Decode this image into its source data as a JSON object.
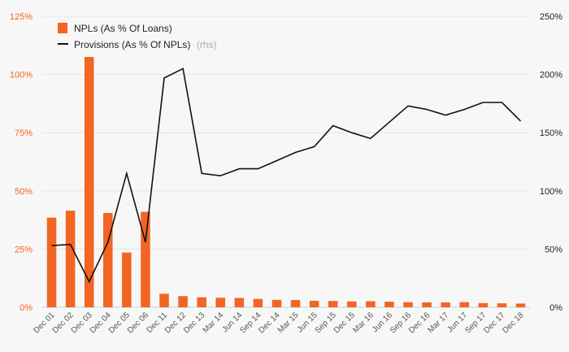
{
  "chart_data": {
    "type": "bar",
    "categories": [
      "Dec 01",
      "Dec 02",
      "Dec 03",
      "Dec 04",
      "Dec 05",
      "Dec 06",
      "Dec 11",
      "Dec 12",
      "Dec 13",
      "Mar 14",
      "Jun 14",
      "Sep 14",
      "Dec 14",
      "Mar 15",
      "Jun 15",
      "Sep 15",
      "Dec 15",
      "Mar 16",
      "Jun 16",
      "Sep 16",
      "Dec 16",
      "Mar 17",
      "Jun 17",
      "Sep 17",
      "Dec 17",
      "Dec 18"
    ],
    "series": [
      {
        "name": "NPLs (As % Of Loans)",
        "axis": "left",
        "type": "bar",
        "color": "#f26522",
        "values": [
          38.5,
          41.5,
          107.5,
          40.5,
          23.5,
          41,
          5.8,
          4.8,
          4.3,
          4.1,
          4,
          3.6,
          3.2,
          3.1,
          2.8,
          2.7,
          2.5,
          2.6,
          2.4,
          2.2,
          2.1,
          2.1,
          2.2,
          1.8,
          1.7,
          1.6
        ]
      },
      {
        "name": "Provisions (As % Of NPLs)",
        "axis_note": "(rhs)",
        "axis": "right",
        "type": "line",
        "color": "#111111",
        "values": [
          53,
          54,
          22,
          56,
          115,
          56,
          197,
          205,
          115,
          113,
          119,
          119,
          126,
          133,
          138,
          156,
          150,
          145,
          159,
          173,
          170,
          165,
          170,
          176,
          176,
          160
        ]
      }
    ],
    "y_left": {
      "ylim": [
        0,
        125
      ],
      "ticks": [
        "0%",
        "25%",
        "50%",
        "75%",
        "100%",
        "125%"
      ]
    },
    "y_right": {
      "ylim": [
        0,
        250
      ],
      "ticks": [
        "0%",
        "50%",
        "100%",
        "150%",
        "200%",
        "250%"
      ]
    },
    "legend_position": "top-left",
    "grid": true
  }
}
